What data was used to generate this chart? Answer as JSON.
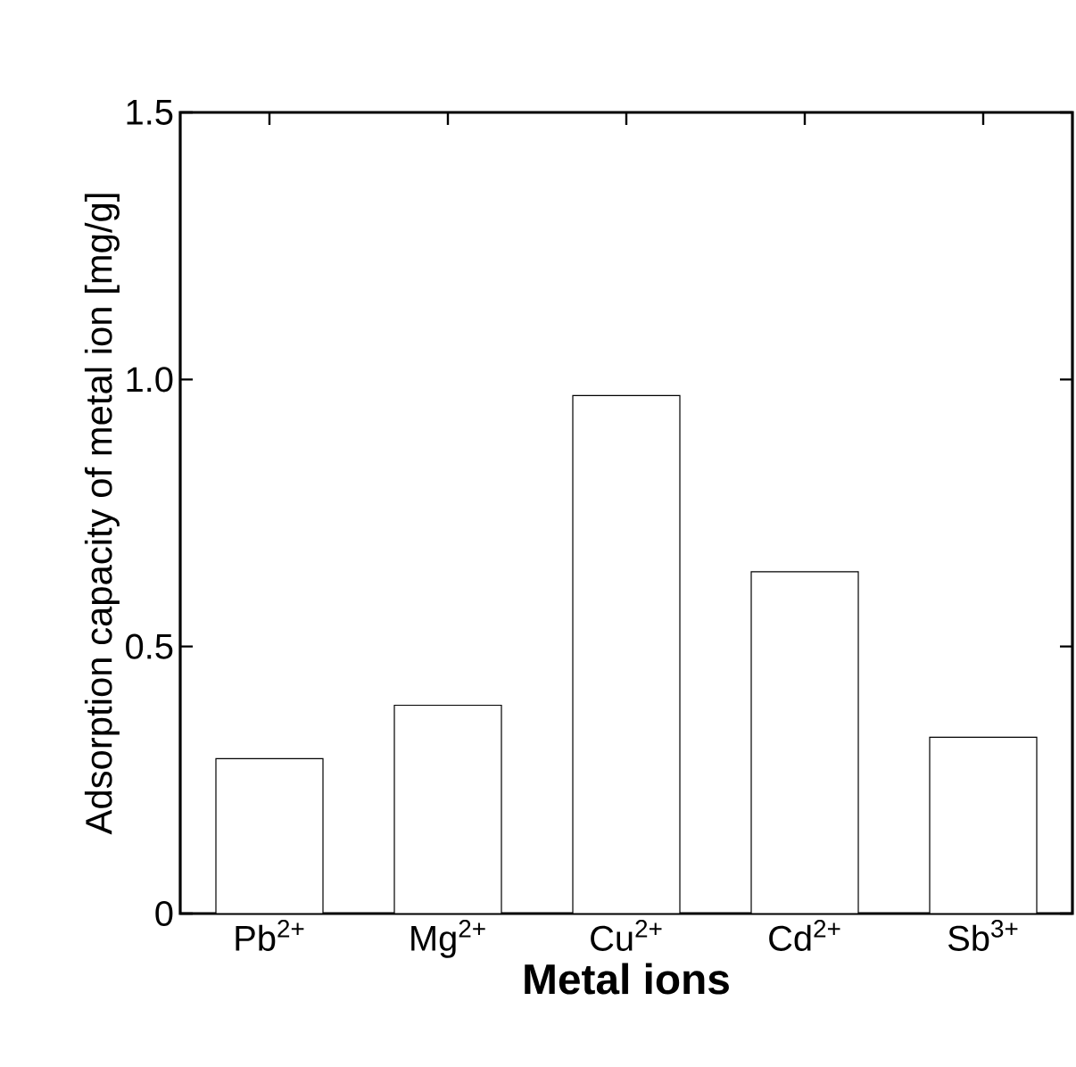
{
  "chart_data": {
    "type": "bar",
    "xlabel": "Metal ions",
    "ylabel": "Adsorption capacity of metal ion  [mg/g]",
    "categories": [
      "Pb$^{2+}$",
      "Mg$^{2+}$",
      "Cu$^{2+}$",
      "Cd$^{2+}$",
      "Sb$^{3+}$"
    ],
    "values": [
      0.29,
      0.39,
      0.97,
      0.64,
      0.33
    ],
    "color": "#ffffff",
    "ylim": [
      0,
      1.5
    ],
    "yticks": [
      0,
      0.5,
      {
        "value": 1,
        "label": "1.0"
      },
      1.5
    ]
  }
}
